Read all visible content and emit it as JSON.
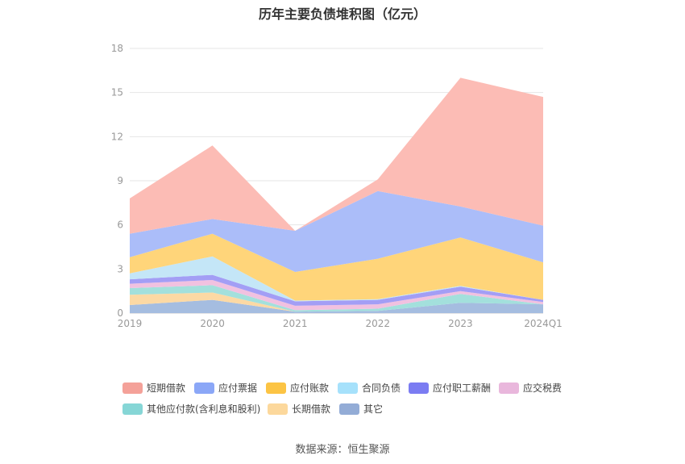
{
  "title": "历年主要负债堆积图（亿元）",
  "source": "数据来源：恒生聚源",
  "chart_data": {
    "type": "area",
    "stacked": true,
    "categories": [
      "2019",
      "2020",
      "2021",
      "2022",
      "2023",
      "2024Q1"
    ],
    "ylim": [
      0,
      18
    ],
    "yticks": [
      0,
      3,
      6,
      9,
      12,
      15,
      18
    ],
    "grid": true,
    "legend_position": "bottom",
    "series": [
      {
        "name": "其它",
        "color": "#a5bde0",
        "values": [
          0.55,
          0.9,
          0.1,
          0.15,
          0.7,
          0.6
        ]
      },
      {
        "name": "长期借款",
        "color": "#fcd9a4",
        "values": [
          0.7,
          0.5,
          0.0,
          0.0,
          0.0,
          0.0
        ]
      },
      {
        "name": "其他应付款(含利息和股利)",
        "color": "#a3e0dc",
        "values": [
          0.45,
          0.5,
          0.1,
          0.15,
          0.6,
          0.0
        ]
      },
      {
        "name": "应交税费",
        "color": "#f1c1e0",
        "values": [
          0.3,
          0.35,
          0.3,
          0.3,
          0.2,
          0.15
        ]
      },
      {
        "name": "应付职工薪酬",
        "color": "#a39ef5",
        "values": [
          0.3,
          0.35,
          0.3,
          0.3,
          0.3,
          0.15
        ]
      },
      {
        "name": "合同负债",
        "color": "#c4e6f7",
        "values": [
          0.4,
          1.25,
          0.05,
          0.05,
          0.05,
          0.0
        ]
      },
      {
        "name": "应付账款",
        "color": "#ffd57a",
        "values": [
          1.1,
          1.55,
          1.95,
          2.75,
          3.3,
          2.55
        ]
      },
      {
        "name": "应付票据",
        "color": "#abbdf9",
        "values": [
          1.6,
          1.0,
          2.8,
          4.6,
          2.1,
          2.5
        ]
      },
      {
        "name": "短期借款",
        "color": "#fcbcb5",
        "values": [
          2.4,
          5.0,
          0.0,
          0.8,
          8.75,
          8.75
        ]
      }
    ],
    "legend_order": [
      "短期借款",
      "应付票据",
      "应付账款",
      "合同负债",
      "应付职工薪酬",
      "应交税费",
      "其他应付款(含利息和股利)",
      "长期借款",
      "其它"
    ],
    "legend_colors": {
      "短期借款": "#f4a199",
      "应付票据": "#8ba7f7",
      "应付账款": "#fcc444",
      "合同负债": "#a6e1fb",
      "应付职工薪酬": "#7b7cf2",
      "应交税费": "#e9b7dc",
      "其他应付款(含利息和股利)": "#86d6d6",
      "长期借款": "#fcd89c",
      "其它": "#93acd6"
    }
  }
}
